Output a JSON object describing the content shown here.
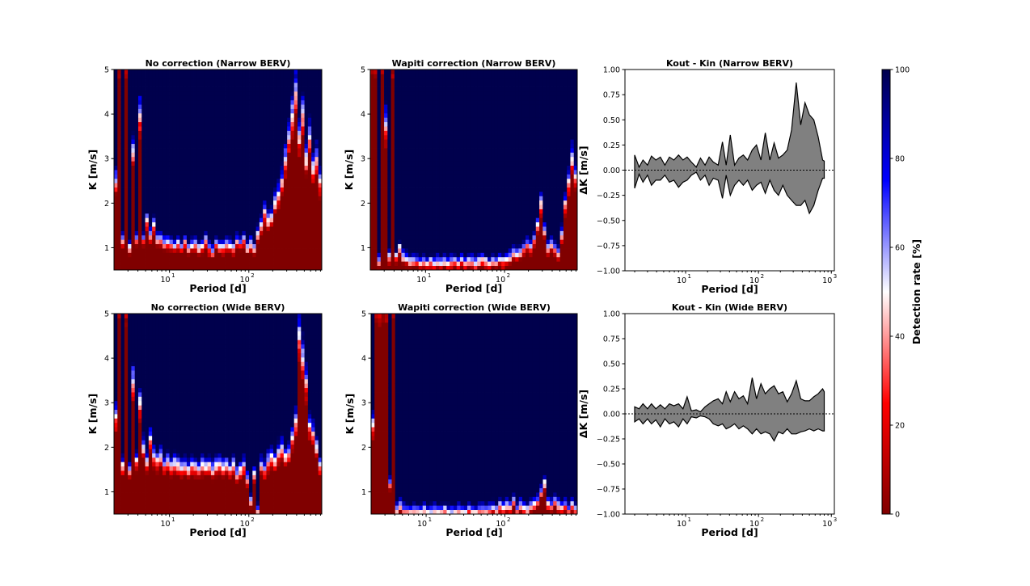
{
  "colors": {
    "c0": "#800000",
    "c25": "#ff0000",
    "c50": "#ffffff",
    "c75": "#0000ff",
    "c100": "#00004d",
    "fill": "#808080"
  },
  "chart_data": [
    {
      "type": "heatmap",
      "id": "nc-narrow",
      "title": "No correction (Narrow BERV)",
      "xlabel": "Period [d]",
      "ylabel": "K [m/s]",
      "xscale": "log",
      "xlim": [
        2,
        830
      ],
      "ylim": [
        0.5,
        5
      ],
      "yticks": [
        "1",
        "2",
        "3",
        "4",
        "5"
      ],
      "xticks": [
        {
          "base": "10",
          "exp": "1",
          "value": 10
        },
        {
          "base": "10",
          "exp": "2",
          "value": 100
        }
      ],
      "value_label": "Detection rate [%]",
      "threshold_K_50pct": [
        2.5,
        5.5,
        1.2,
        5.5,
        1.0,
        3.2,
        1.2,
        4.0,
        1.2,
        1.6,
        1.3,
        1.5,
        1.2,
        1.2,
        1.1,
        1.15,
        1.1,
        1.05,
        1.1,
        1.0,
        1.15,
        1.0,
        1.05,
        1.1,
        1.0,
        1.05,
        1.2,
        1.0,
        0.9,
        1.1,
        1.05,
        1.0,
        1.1,
        1.05,
        1.0,
        1.15,
        1.1,
        1.2,
        1.0,
        1.1,
        1.0,
        1.3,
        1.5,
        1.8,
        1.6,
        1.7,
        2.0,
        2.2,
        2.5,
        3.0,
        3.5,
        4.0,
        4.5,
        3.5,
        4.0,
        3.0,
        3.5,
        2.8,
        3.0,
        2.5
      ]
    },
    {
      "type": "heatmap",
      "id": "wap-narrow",
      "title": "Wapiti correction (Narrow BERV)",
      "xlabel": "Period [d]",
      "ylabel": "K [m/s]",
      "xscale": "log",
      "xlim": [
        2,
        830
      ],
      "ylim": [
        0.5,
        5
      ],
      "yticks": [
        "1",
        "2",
        "3",
        "4",
        "5"
      ],
      "xticks": [
        {
          "base": "10",
          "exp": "1",
          "value": 10
        },
        {
          "base": "10",
          "exp": "2",
          "value": 100
        }
      ],
      "value_label": "Detection rate [%]",
      "threshold_K_50pct": [
        5.5,
        5.5,
        0.7,
        5.5,
        3.8,
        0.8,
        5.5,
        0.8,
        1.0,
        0.8,
        0.75,
        0.7,
        0.7,
        0.7,
        0.65,
        0.7,
        0.65,
        0.7,
        0.65,
        0.7,
        0.65,
        0.7,
        0.65,
        0.7,
        0.7,
        0.65,
        0.75,
        0.65,
        0.7,
        0.7,
        0.65,
        0.7,
        0.75,
        0.7,
        0.65,
        0.7,
        0.7,
        0.75,
        0.7,
        0.75,
        0.8,
        0.9,
        0.85,
        0.9,
        1.0,
        1.1,
        1.0,
        1.2,
        1.5,
        2.0,
        1.4,
        1.0,
        1.1,
        1.0,
        0.9,
        1.3,
        2.0,
        2.5,
        3.0,
        2.6
      ]
    },
    {
      "type": "area",
      "id": "dk-narrow",
      "title": "Kout - Kin (Narrow BERV)",
      "xlabel": "Period [d]",
      "ylabel": "ΔK [m/s]",
      "xscale": "log",
      "xlim": [
        1.47,
        1100
      ],
      "ylim": [
        -1,
        1
      ],
      "yticks": [
        "−1.00",
        "−0.75",
        "−0.50",
        "−0.25",
        "0.00",
        "0.25",
        "0.50",
        "0.75",
        "1.00"
      ],
      "xticks": [
        {
          "base": "10",
          "exp": "1",
          "value": 10
        },
        {
          "base": "10",
          "exp": "2",
          "value": 100
        },
        {
          "base": "10",
          "exp": "3",
          "value": 1000
        }
      ],
      "x": [
        2,
        2.3,
        2.6,
        3,
        3.4,
        3.9,
        4.5,
        5.2,
        6,
        6.9,
        8,
        9.2,
        10.5,
        12,
        14,
        16,
        18.5,
        21,
        24,
        28,
        32,
        36,
        41,
        47,
        54,
        62,
        71,
        82,
        94,
        108,
        124,
        143,
        164,
        188,
        216,
        248,
        285,
        330,
        380,
        435,
        500,
        575,
        660,
        760,
        800
      ],
      "upper": [
        0.15,
        0.03,
        0.1,
        0.05,
        0.14,
        0.1,
        0.13,
        0.05,
        0.13,
        0.1,
        0.15,
        0.1,
        0.13,
        0.08,
        0.03,
        0.12,
        0.05,
        0.13,
        0.08,
        0.05,
        0.28,
        0.05,
        0.35,
        0.05,
        0.12,
        0.15,
        0.1,
        0.2,
        0.25,
        0.1,
        0.37,
        0.1,
        0.27,
        0.12,
        0.15,
        0.2,
        0.4,
        0.87,
        0.45,
        0.67,
        0.55,
        0.5,
        0.33,
        0.1,
        0.09
      ],
      "lower": [
        -0.18,
        -0.04,
        -0.12,
        -0.05,
        -0.15,
        -0.1,
        -0.1,
        -0.05,
        -0.12,
        -0.1,
        -0.17,
        -0.12,
        -0.1,
        -0.05,
        -0.02,
        -0.1,
        -0.05,
        -0.15,
        -0.08,
        -0.1,
        -0.28,
        -0.05,
        -0.25,
        -0.15,
        -0.1,
        -0.15,
        -0.1,
        -0.2,
        -0.15,
        -0.12,
        -0.23,
        -0.1,
        -0.2,
        -0.25,
        -0.15,
        -0.25,
        -0.3,
        -0.35,
        -0.35,
        -0.3,
        -0.43,
        -0.35,
        -0.2,
        -0.08,
        -0.08
      ]
    },
    {
      "type": "heatmap",
      "id": "nc-wide",
      "title": "No correction (Wide BERV)",
      "xlabel": "Period [d]",
      "ylabel": "K [m/s]",
      "xscale": "log",
      "xlim": [
        2,
        830
      ],
      "ylim": [
        0.5,
        5
      ],
      "yticks": [
        "1",
        "2",
        "3",
        "4",
        "5"
      ],
      "xticks": [
        {
          "base": "10",
          "exp": "1",
          "value": 10
        },
        {
          "base": "10",
          "exp": "2",
          "value": 100
        }
      ],
      "value_label": "Detection rate [%]",
      "threshold_K_50pct": [
        2.7,
        5.5,
        1.6,
        5.5,
        1.5,
        3.5,
        1.7,
        3.0,
        2.0,
        1.7,
        2.2,
        1.8,
        1.7,
        1.8,
        1.6,
        1.7,
        1.6,
        1.65,
        1.6,
        1.55,
        1.6,
        1.5,
        1.6,
        1.55,
        1.5,
        1.6,
        1.55,
        1.6,
        1.5,
        1.6,
        1.65,
        1.55,
        1.6,
        1.5,
        1.6,
        1.4,
        1.5,
        1.6,
        1.3,
        0.8,
        1.4,
        0.6,
        1.6,
        1.5,
        1.7,
        1.8,
        1.7,
        1.9,
        2.0,
        1.8,
        1.9,
        2.2,
        2.6,
        4.5,
        4.0,
        3.5,
        2.5,
        2.3,
        2.0,
        1.6
      ]
    },
    {
      "type": "heatmap",
      "id": "wap-wide",
      "title": "Wapiti correction (Wide BERV)",
      "xlabel": "Period [d]",
      "ylabel": "K [m/s]",
      "xscale": "log",
      "xlim": [
        2,
        830
      ],
      "ylim": [
        0.5,
        5
      ],
      "yticks": [
        "1",
        "2",
        "3",
        "4",
        "5"
      ],
      "xticks": [
        {
          "base": "10",
          "exp": "1",
          "value": 10
        },
        {
          "base": "10",
          "exp": "2",
          "value": 100
        }
      ],
      "value_label": "Detection rate [%]",
      "threshold_K_50pct": [
        2.5,
        5.5,
        5.5,
        5.5,
        5.5,
        1.2,
        5.5,
        0.6,
        0.7,
        0.6,
        0.6,
        0.55,
        0.6,
        0.55,
        0.55,
        0.6,
        0.55,
        0.55,
        0.6,
        0.55,
        0.55,
        0.6,
        0.55,
        0.55,
        0.55,
        0.6,
        0.55,
        0.55,
        0.6,
        0.55,
        0.55,
        0.6,
        0.6,
        0.55,
        0.6,
        0.65,
        0.6,
        0.7,
        0.65,
        0.7,
        0.65,
        0.8,
        0.6,
        0.7,
        0.65,
        0.6,
        0.7,
        0.75,
        0.8,
        1.0,
        1.2,
        0.75,
        0.7,
        0.8,
        0.7,
        0.65,
        0.7,
        0.6,
        0.7,
        0.6
      ]
    },
    {
      "type": "area",
      "id": "dk-wide",
      "title": "Kout - Kin (Wide BERV)",
      "xlabel": "Period [d]",
      "ylabel": "ΔK [m/s]",
      "xscale": "log",
      "xlim": [
        1.47,
        1100
      ],
      "ylim": [
        -1,
        1
      ],
      "yticks": [
        "−1.00",
        "−0.75",
        "−0.50",
        "−0.25",
        "0.00",
        "0.25",
        "0.50",
        "0.75",
        "1.00"
      ],
      "xticks": [
        {
          "base": "10",
          "exp": "1",
          "value": 10
        },
        {
          "base": "10",
          "exp": "2",
          "value": 100
        },
        {
          "base": "10",
          "exp": "3",
          "value": 1000
        }
      ],
      "x": [
        2,
        2.3,
        2.6,
        3,
        3.4,
        3.9,
        4.5,
        5.2,
        6,
        6.9,
        8,
        9.2,
        10.5,
        12,
        14,
        16,
        18.5,
        21,
        24,
        28,
        32,
        36,
        41,
        47,
        54,
        62,
        71,
        82,
        94,
        108,
        124,
        143,
        164,
        188,
        216,
        248,
        285,
        330,
        380,
        435,
        500,
        575,
        660,
        760,
        800
      ],
      "upper": [
        0.07,
        0.05,
        0.1,
        0.05,
        0.1,
        0.05,
        0.09,
        0.05,
        0.1,
        0.08,
        0.1,
        0.05,
        0.17,
        0.03,
        0.04,
        0.02,
        0.07,
        0.1,
        0.13,
        0.15,
        0.1,
        0.22,
        0.12,
        0.22,
        0.15,
        0.18,
        0.1,
        0.36,
        0.15,
        0.3,
        0.2,
        0.25,
        0.28,
        0.2,
        0.22,
        0.12,
        0.2,
        0.33,
        0.15,
        0.13,
        0.13,
        0.17,
        0.2,
        0.25,
        0.22
      ],
      "lower": [
        -0.08,
        -0.05,
        -0.1,
        -0.05,
        -0.1,
        -0.06,
        -0.13,
        -0.05,
        -0.1,
        -0.08,
        -0.13,
        -0.05,
        -0.1,
        -0.03,
        -0.04,
        -0.02,
        -0.03,
        -0.05,
        -0.1,
        -0.12,
        -0.1,
        -0.15,
        -0.13,
        -0.1,
        -0.15,
        -0.12,
        -0.15,
        -0.2,
        -0.15,
        -0.2,
        -0.18,
        -0.2,
        -0.27,
        -0.18,
        -0.2,
        -0.15,
        -0.2,
        -0.2,
        -0.18,
        -0.17,
        -0.15,
        -0.17,
        -0.15,
        -0.17,
        -0.17
      ]
    }
  ],
  "colorbar": {
    "label": "Detection rate [%]",
    "ticks": [
      "0",
      "20",
      "40",
      "60",
      "80",
      "100"
    ],
    "range": [
      0,
      100
    ]
  }
}
